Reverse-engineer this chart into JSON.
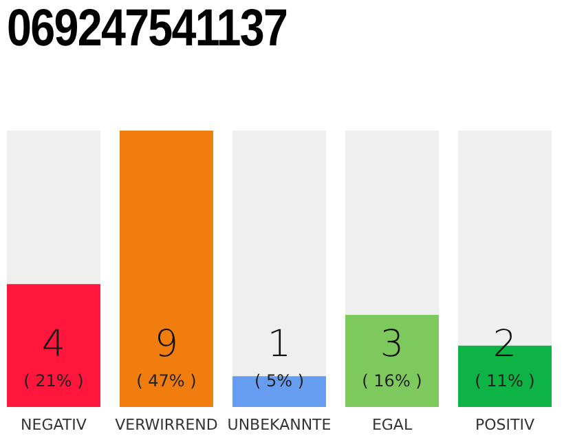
{
  "chart_data": {
    "type": "bar",
    "title": "069247541137",
    "categories": [
      "NEGATIV",
      "VERWIRREND",
      "UNBEKANNTE",
      "EGAL",
      "POSITIV"
    ],
    "values": [
      4,
      9,
      1,
      3,
      2
    ],
    "colors": [
      "#fe163c",
      "#f07d0d",
      "#679df0",
      "#7ec95e",
      "#0db344"
    ],
    "ylim": [
      0,
      9
    ],
    "tick_labels": "x",
    "data_labels": true,
    "annotations": [
      "( 21% )",
      "( 47% )",
      "( 5% )",
      "( 16% )",
      "( 11% )"
    ]
  }
}
